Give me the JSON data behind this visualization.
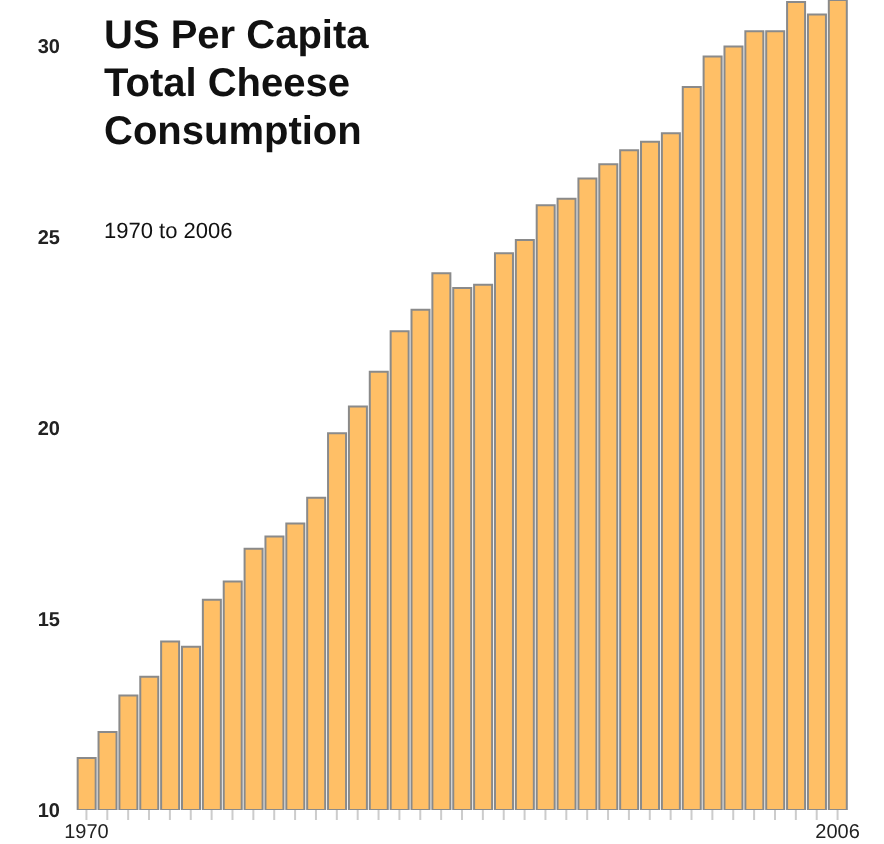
{
  "chart_data": {
    "type": "bar",
    "title": "US Per Capita Total Cheese Consumption",
    "subtitle": "1970 to 2006",
    "categories": [
      "1970",
      null,
      null,
      null,
      null,
      null,
      null,
      null,
      null,
      null,
      null,
      null,
      null,
      null,
      null,
      null,
      null,
      null,
      null,
      null,
      null,
      null,
      null,
      null,
      null,
      null,
      null,
      null,
      null,
      null,
      null,
      null,
      null,
      null,
      null,
      null,
      "2006"
    ],
    "values": [
      11.36,
      12.04,
      13.0,
      13.49,
      14.41,
      14.27,
      15.5,
      15.98,
      16.84,
      17.16,
      17.5,
      18.17,
      19.86,
      20.56,
      21.47,
      22.53,
      23.09,
      24.05,
      23.66,
      23.75,
      24.57,
      24.92,
      25.83,
      26.0,
      26.53,
      26.9,
      27.27,
      27.49,
      27.71,
      28.92,
      29.72,
      29.98,
      30.38,
      30.38,
      31.15,
      30.82,
      31.2
    ],
    "color": "#ffbf66",
    "ylim": [
      10,
      31.2
    ],
    "yticks": [
      10,
      15,
      20,
      25,
      30
    ],
    "grid": false
  }
}
